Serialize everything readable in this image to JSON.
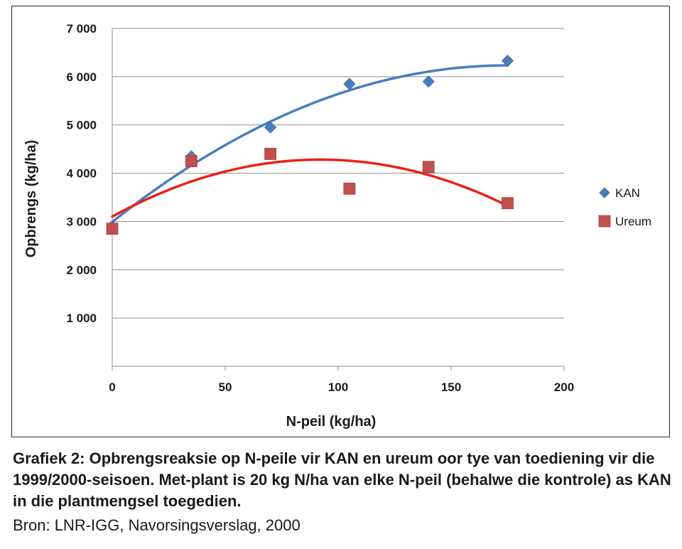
{
  "chart_data": {
    "type": "scatter",
    "xlabel": "N-peil (kg/ha)",
    "ylabel": "Opbrengs (kg/ha)",
    "xlim": [
      0,
      200
    ],
    "ylim": [
      0,
      7000
    ],
    "x_ticks": [
      0,
      50,
      100,
      150,
      200
    ],
    "y_ticks": [
      0,
      1000,
      2000,
      3000,
      4000,
      5000,
      6000,
      7000
    ],
    "x_tick_labels": [
      "0",
      "50",
      "100",
      "150",
      "200"
    ],
    "y_tick_labels": [
      "",
      "1 000",
      "2 000",
      "3 000",
      "4 000",
      "5 000",
      "6 000",
      "7 000"
    ],
    "grid": true,
    "legend_position": "right",
    "series": [
      {
        "name": "KAN",
        "marker": "diamond",
        "color": "#4a7ebb",
        "trend_color": "#4a7ebb",
        "x": [
          0,
          35,
          70,
          105,
          140,
          175
        ],
        "y": [
          2900,
          4350,
          4950,
          5850,
          5900,
          6330
        ],
        "trendline": "polynomial-2"
      },
      {
        "name": "Ureum",
        "marker": "square",
        "color": "#c0504d",
        "trend_color": "#e8221b",
        "x": [
          0,
          35,
          70,
          105,
          140,
          175
        ],
        "y": [
          2850,
          4250,
          4400,
          3680,
          4130,
          3380
        ],
        "trendline": "polynomial-2"
      }
    ]
  },
  "caption": {
    "title": "Grafiek 2: Opbrengsreaksie op N-peile vir KAN en ureum oor tye van toe­diening vir die 1999/2000-seisoen. Met-plant is 20 kg N/ha van elke N-peil (behalwe die kontrole) as KAN in die plantmengsel toegedien.",
    "source": "Bron: LNR-IGG, Navorsingsverslag, 2000"
  }
}
